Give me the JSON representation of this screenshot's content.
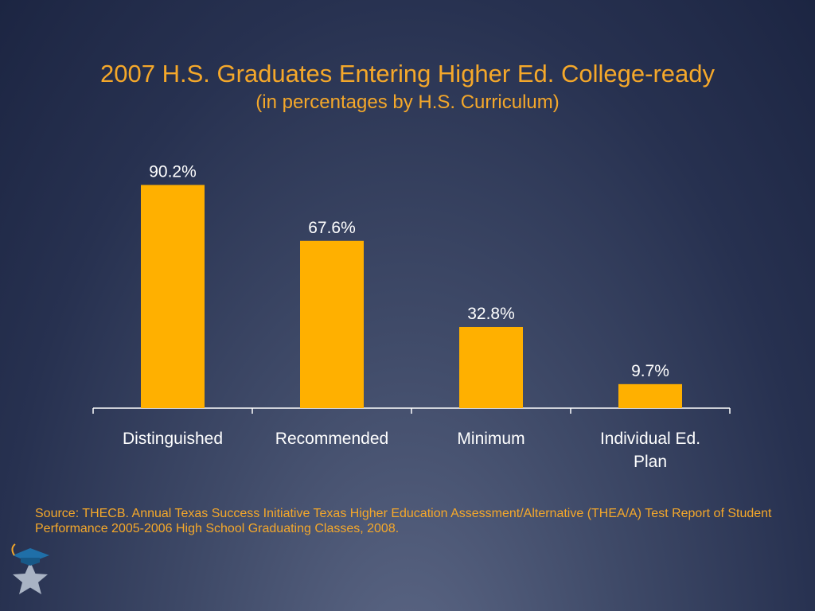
{
  "title": "2007 H.S. Graduates Entering Higher Ed. College-ready",
  "subtitle": "(in percentages by H.S. Curriculum)",
  "chart_data": {
    "type": "bar",
    "categories": [
      [
        "Distinguished"
      ],
      [
        "Recommended"
      ],
      [
        "Minimum"
      ],
      [
        "Individual Ed.",
        "Plan"
      ]
    ],
    "values": [
      90.2,
      67.6,
      32.8,
      9.7
    ],
    "data_labels": [
      "90.2%",
      "67.6%",
      "32.8%",
      "9.7%"
    ],
    "ylim": [
      0,
      100
    ],
    "grid": false,
    "legend": "none",
    "bar_color": "#ffb000",
    "text_color": "#ffffff"
  },
  "source": "Source:  THECB. Annual Texas Success Initiative Texas Higher Education Assessment/Alternative (THEA/A) Test Report of Student Performance 2005-2006 High School Graduating Classes, 2008.",
  "logo": {
    "icon": "graduation-cap-star-icon",
    "star_color": "#a9b3c4",
    "cap_color": "#1f6fa8",
    "tassel_color": "#f5a82a"
  }
}
